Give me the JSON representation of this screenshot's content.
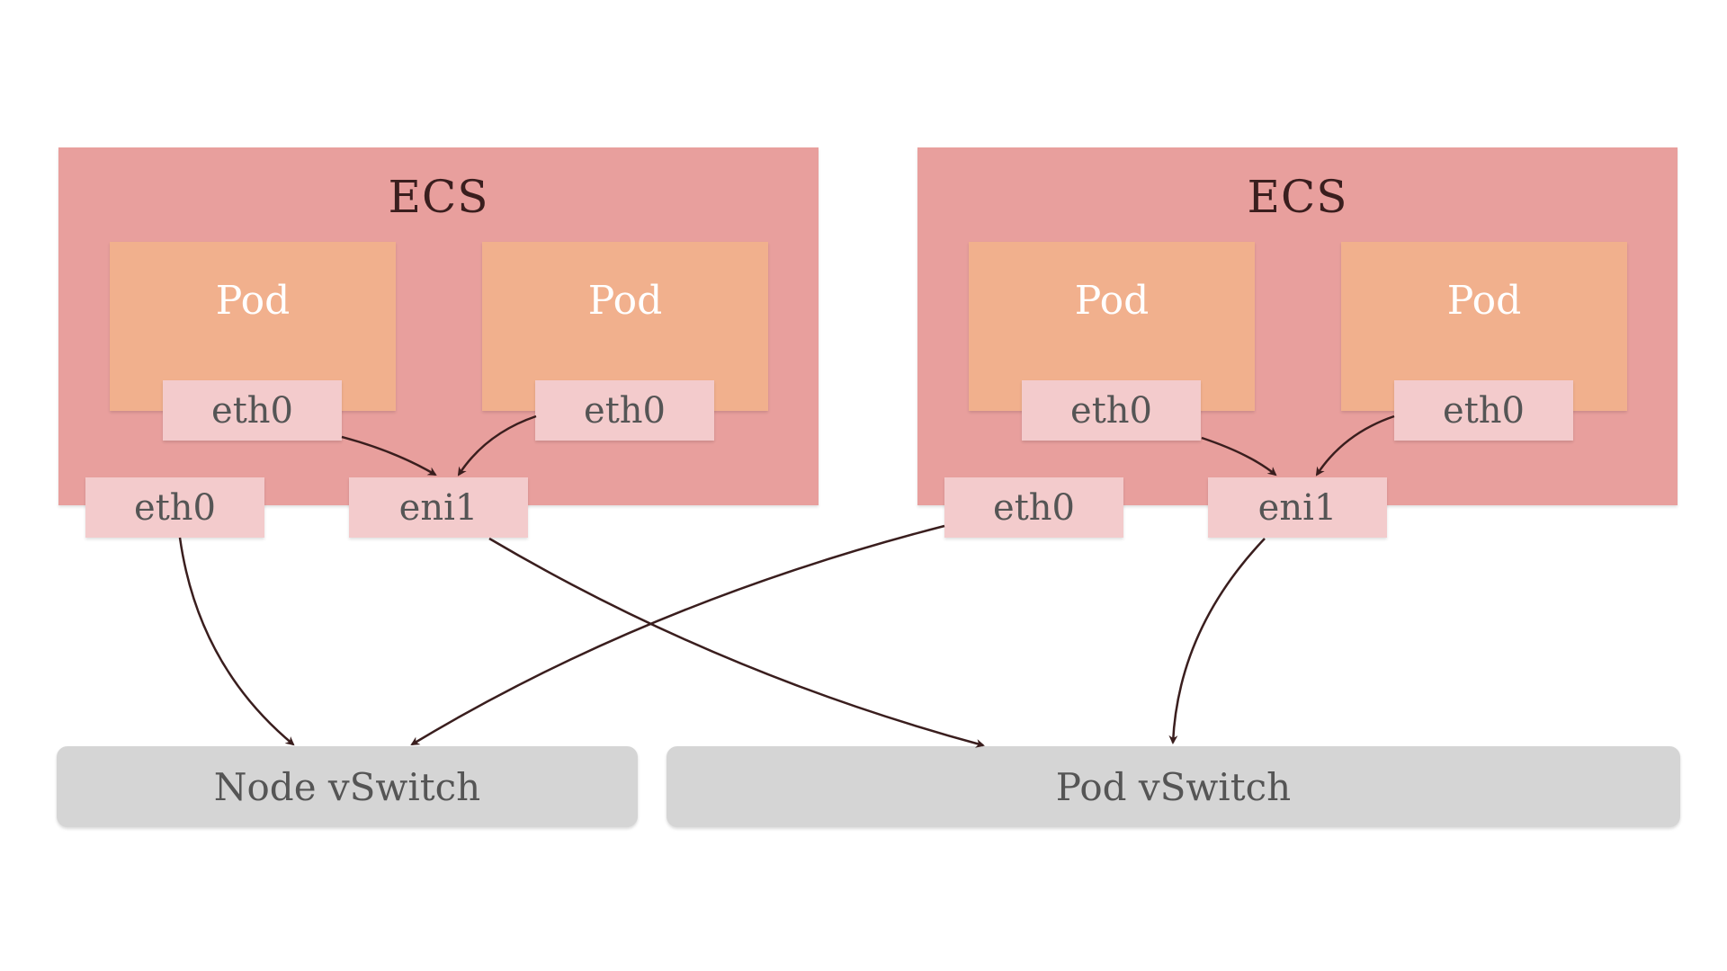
{
  "colors": {
    "ecs": "#e89f9d",
    "pod": "#f1b08d",
    "nic": "#f3cbcc",
    "vswitch": "#d5d5d5",
    "arrow": "#3a1e1e"
  },
  "hosts": [
    {
      "label": "ECS",
      "pods": [
        {
          "label": "Pod",
          "nic": "eth0"
        },
        {
          "label": "Pod",
          "nic": "eth0"
        }
      ],
      "node_nic": "eth0",
      "eni": "eni1"
    },
    {
      "label": "ECS",
      "pods": [
        {
          "label": "Pod",
          "nic": "eth0"
        },
        {
          "label": "Pod",
          "nic": "eth0"
        }
      ],
      "node_nic": "eth0",
      "eni": "eni1"
    }
  ],
  "switches": {
    "node": "Node vSwitch",
    "pod": "Pod vSwitch"
  }
}
